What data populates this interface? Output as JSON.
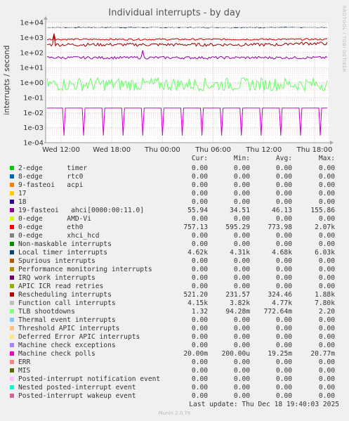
{
  "chart_data": {
    "type": "line",
    "title": "Individual interrupts - by day",
    "ylabel": "interrupts / second",
    "yscale": "log",
    "ylim": [
      0.0001,
      10000
    ],
    "yticks": [
      "1e+04",
      "1e+03",
      "1e+02",
      "1e+01",
      "1e+00",
      "1e-01",
      "1e-02",
      "1e-03",
      "1e-04"
    ],
    "xticks": [
      "Wed 12:00",
      "Wed 18:00",
      "Thu 00:00",
      "Thu 06:00",
      "Thu 12:00",
      "Thu 18:00"
    ],
    "grid": true,
    "side_label": "RRDTOOL / TOBI OETIKER",
    "series": [
      {
        "name": "Local timer interrupts",
        "color": "#00455f",
        "level": 4680
      },
      {
        "name": "Function call interrupts",
        "color": "#cccccc",
        "level": 4770
      },
      {
        "name": "0-edge      eth0",
        "color": "#cc0000",
        "level": 757
      },
      {
        "name": "Rescheduling interrupts",
        "color": "#990000",
        "level": 324
      },
      {
        "name": "19-fasteoi   ahci[0000:00:11.0]",
        "color": "#8f00a8",
        "level": 46
      },
      {
        "name": "TLB shootdowns",
        "color": "#66ff66",
        "level": 0.77
      },
      {
        "name": "Machine check polls",
        "color": "#cc00cc",
        "level": 0.02
      }
    ]
  },
  "legend": {
    "headers": {
      "cur": "Cur:",
      "min": "Min:",
      "avg": "Avg:",
      "max": "Max:"
    },
    "rows": [
      {
        "name": "2-edge      timer",
        "color": "#00cc00",
        "cur": "0.00",
        "min": "0.00",
        "avg": "0.00",
        "max": "0.00"
      },
      {
        "name": "8-edge      rtc0",
        "color": "#0066b3",
        "cur": "0.00",
        "min": "0.00",
        "avg": "0.00",
        "max": "0.00"
      },
      {
        "name": "9-fasteoi   acpi",
        "color": "#ff8000",
        "cur": "0.00",
        "min": "0.00",
        "avg": "0.00",
        "max": "0.00"
      },
      {
        "name": "17",
        "color": "#ffcc00",
        "cur": "0.00",
        "min": "0.00",
        "avg": "0.00",
        "max": "0.00"
      },
      {
        "name": "18",
        "color": "#330099",
        "cur": "0.00",
        "min": "0.00",
        "avg": "0.00",
        "max": "0.00"
      },
      {
        "name": "19-fasteoi   ahci[0000:00:11.0]",
        "color": "#990099",
        "cur": "55.94",
        "min": "34.51",
        "avg": "46.13",
        "max": "155.86"
      },
      {
        "name": "0-edge      AMD-Vi",
        "color": "#ccff00",
        "cur": "0.00",
        "min": "0.00",
        "avg": "0.00",
        "max": "0.00"
      },
      {
        "name": "0-edge      eth0",
        "color": "#ff0000",
        "cur": "757.13",
        "min": "595.29",
        "avg": "773.98",
        "max": "2.07k"
      },
      {
        "name": "0-edge      xhci_hcd",
        "color": "#808080",
        "cur": "0.00",
        "min": "0.00",
        "avg": "0.00",
        "max": "0.00"
      },
      {
        "name": "Non-maskable interrupts",
        "color": "#008f00",
        "cur": "0.00",
        "min": "0.00",
        "avg": "0.00",
        "max": "0.00"
      },
      {
        "name": "Local timer interrupts",
        "color": "#00487d",
        "cur": "4.62k",
        "min": "4.31k",
        "avg": "4.68k",
        "max": "6.03k"
      },
      {
        "name": "Spurious interrupts",
        "color": "#b35a00",
        "cur": "0.00",
        "min": "0.00",
        "avg": "0.00",
        "max": "0.00"
      },
      {
        "name": "Performance monitoring interrupts",
        "color": "#b38f00",
        "cur": "0.00",
        "min": "0.00",
        "avg": "0.00",
        "max": "0.00"
      },
      {
        "name": "IRQ work interrupts",
        "color": "#6b006b",
        "cur": "0.00",
        "min": "0.00",
        "avg": "0.00",
        "max": "0.00"
      },
      {
        "name": "APIC ICR read retries",
        "color": "#8fb300",
        "cur": "0.00",
        "min": "0.00",
        "avg": "0.00",
        "max": "0.00"
      },
      {
        "name": "Rescheduling interrupts",
        "color": "#b30000",
        "cur": "521.20",
        "min": "231.57",
        "avg": "324.46",
        "max": "1.88k"
      },
      {
        "name": "Function call interrupts",
        "color": "#bebebe",
        "cur": "4.15k",
        "min": "3.82k",
        "avg": "4.77k",
        "max": "7.80k"
      },
      {
        "name": "TLB shootdowns",
        "color": "#80ff80",
        "cur": "1.32",
        "min": "94.28m",
        "avg": "772.64m",
        "max": "2.20"
      },
      {
        "name": "Thermal event interrupts",
        "color": "#80c9ff",
        "cur": "0.00",
        "min": "0.00",
        "avg": "0.00",
        "max": "0.00"
      },
      {
        "name": "Threshold APIC interrupts",
        "color": "#ffc080",
        "cur": "0.00",
        "min": "0.00",
        "avg": "0.00",
        "max": "0.00"
      },
      {
        "name": "Deferred Error APIC interrupts",
        "color": "#ffe680",
        "cur": "0.00",
        "min": "0.00",
        "avg": "0.00",
        "max": "0.00"
      },
      {
        "name": "Machine check exceptions",
        "color": "#aa80ff",
        "cur": "0.00",
        "min": "0.00",
        "avg": "0.00",
        "max": "0.00"
      },
      {
        "name": "Machine check polls",
        "color": "#ee00cc",
        "cur": "20.00m",
        "min": "200.00u",
        "avg": "19.25m",
        "max": "20.77m"
      },
      {
        "name": "ERR",
        "color": "#ff8080",
        "cur": "0.00",
        "min": "0.00",
        "avg": "0.00",
        "max": "0.00"
      },
      {
        "name": "MIS",
        "color": "#666600",
        "cur": "0.00",
        "min": "0.00",
        "avg": "0.00",
        "max": "0.00"
      },
      {
        "name": "Posted-interrupt notification event",
        "color": "#ffbfff",
        "cur": "0.00",
        "min": "0.00",
        "avg": "0.00",
        "max": "0.00"
      },
      {
        "name": "Nested posted-interrupt event",
        "color": "#00ffcc",
        "cur": "0.00",
        "min": "0.00",
        "avg": "0.00",
        "max": "0.00"
      },
      {
        "name": "Posted-interrupt wakeup event",
        "color": "#cc6699",
        "cur": "0.00",
        "min": "0.00",
        "avg": "0.00",
        "max": "0.00"
      }
    ]
  },
  "last_update": "Last update: Thu Dec 18 19:40:03 2025",
  "footer": "Munin 2.0.76"
}
